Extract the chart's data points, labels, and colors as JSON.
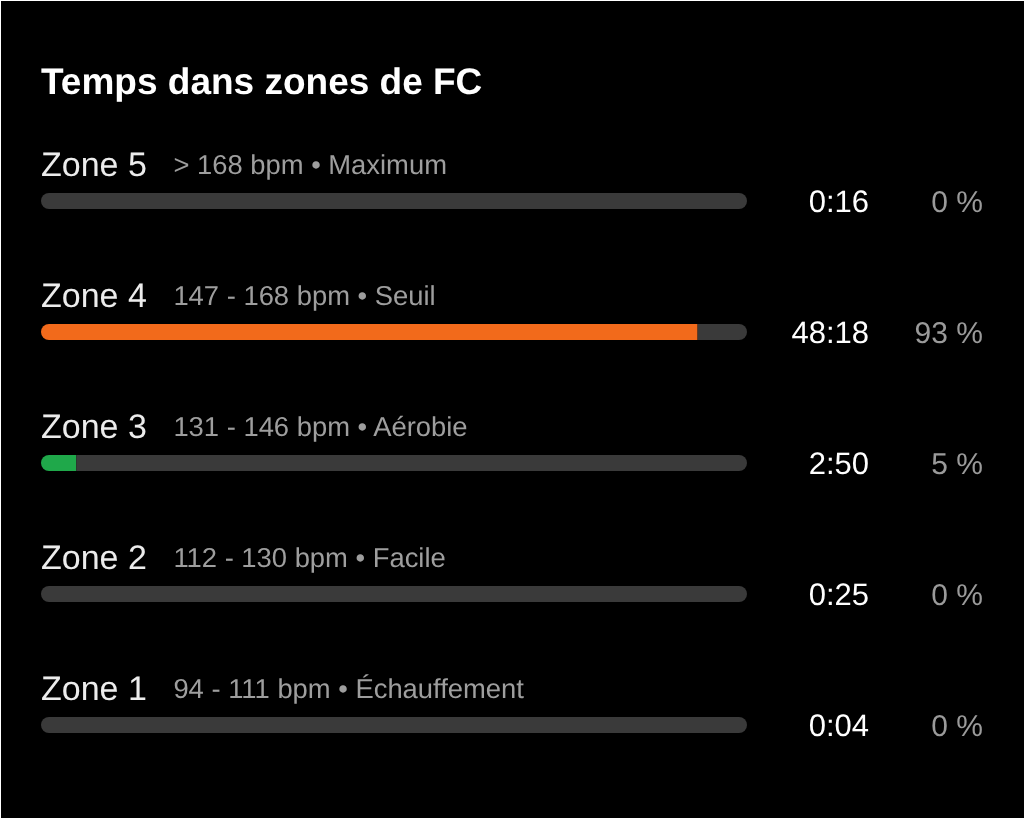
{
  "chart_data": {
    "type": "bar",
    "orientation": "horizontal",
    "stacked": true,
    "title": "Temps dans zones de FC",
    "categories": [
      "Zone 5",
      "Zone 4",
      "Zone 3",
      "Zone 2",
      "Zone 1"
    ],
    "series": [
      {
        "values": [
          0,
          93,
          5,
          0,
          0
        ],
        "colors": [
          null,
          "#f26a1b",
          "#1fa84a",
          null,
          null
        ],
        "value_labels": [
          "0 %",
          "93 %",
          "5 %",
          "0 %",
          "0 %"
        ]
      },
      {
        "values": [
          100,
          7,
          95,
          100,
          100
        ],
        "color": "#3a3a3a"
      }
    ],
    "xlim": [
      0,
      100
    ],
    "tick_labels": "y",
    "annotations": [
      "> 168 bpm • Maximum",
      "0:16",
      "147 - 168 bpm • Seuil",
      "48:18",
      "131 - 146 bpm • Aérobie",
      "2:50",
      "112 - 130 bpm • Facile",
      "0:25",
      "94 - 111 bpm • Échauffement",
      "0:04"
    ]
  }
}
